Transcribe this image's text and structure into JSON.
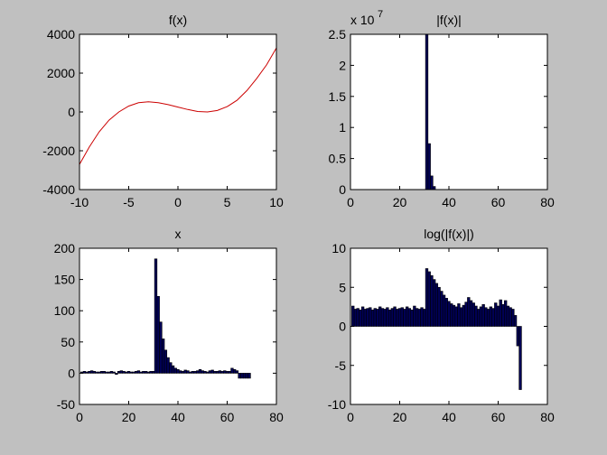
{
  "chart_data": [
    {
      "type": "line",
      "title": "f(x)",
      "xlim": [
        -10,
        10
      ],
      "ylim": [
        -4000,
        4000
      ],
      "xticks": [
        -10,
        -5,
        0,
        5,
        10
      ],
      "yticks": [
        -4000,
        -2000,
        0,
        2000,
        4000
      ],
      "tick_labels_x": [
        "-10",
        "-5",
        "0",
        "5",
        "10"
      ],
      "tick_labels_y": [
        "-4000",
        "-2000",
        "0",
        "2000",
        "4000"
      ],
      "series": [
        {
          "color": "#cc0000",
          "x": [
            -10,
            -9,
            -8,
            -7,
            -6,
            -5,
            -4,
            -3,
            -2,
            -1,
            0,
            1,
            2,
            3,
            4,
            5,
            6,
            7,
            8,
            9,
            10
          ],
          "values": [
            -2700,
            -1800,
            -1025,
            -425,
            0,
            300,
            475,
            525,
            475,
            375,
            250,
            125,
            25,
            0,
            75,
            275,
            600,
            1100,
            1725,
            2425,
            3300
          ]
        }
      ],
      "grid": false
    },
    {
      "type": "bar",
      "title": "|f(x)|",
      "exponent_label": "x 10",
      "exponent_power": "7",
      "xlim": [
        0,
        80
      ],
      "ylim": [
        0,
        2.5
      ],
      "xticks": [
        0,
        20,
        40,
        60,
        80
      ],
      "yticks": [
        0,
        0.5,
        1,
        1.5,
        2,
        2.5
      ],
      "tick_labels_x": [
        "0",
        "20",
        "40",
        "60",
        "80"
      ],
      "tick_labels_y": [
        "0",
        "0.5",
        "1",
        "1.5",
        "2",
        "2.5"
      ],
      "bar_color": "#000055",
      "x": [
        31,
        32,
        33,
        34
      ],
      "values": [
        2.5,
        0.74,
        0.22,
        0.05
      ],
      "grid": false
    },
    {
      "type": "bar",
      "title": "x",
      "xlim": [
        0,
        80
      ],
      "ylim": [
        -50,
        200
      ],
      "xticks": [
        0,
        20,
        40,
        60,
        80
      ],
      "yticks": [
        -50,
        0,
        50,
        100,
        150,
        200
      ],
      "tick_labels_x": [
        "0",
        "20",
        "40",
        "60",
        "80"
      ],
      "tick_labels_y": [
        "-50",
        "0",
        "50",
        "100",
        "150",
        "200"
      ],
      "bar_color": "#000055",
      "x": [
        1,
        2,
        3,
        4,
        5,
        6,
        7,
        8,
        9,
        10,
        11,
        12,
        13,
        14,
        15,
        16,
        17,
        18,
        19,
        20,
        21,
        22,
        23,
        24,
        25,
        26,
        27,
        28,
        29,
        30,
        31,
        32,
        33,
        34,
        35,
        36,
        37,
        38,
        39,
        40,
        41,
        42,
        43,
        44,
        45,
        46,
        47,
        48,
        49,
        50,
        51,
        52,
        53,
        54,
        55,
        56,
        57,
        58,
        59,
        60,
        61,
        62,
        63,
        64,
        65,
        66,
        67,
        68,
        69
      ],
      "values": [
        2,
        3,
        2,
        3,
        4,
        3,
        2,
        2,
        3,
        3,
        2,
        2,
        3,
        2,
        -2,
        3,
        4,
        3,
        2,
        3,
        2,
        2,
        3,
        4,
        2,
        3,
        3,
        2,
        3,
        3,
        183,
        123,
        82,
        55,
        37,
        25,
        17,
        12,
        8,
        6,
        4,
        3,
        5,
        4,
        2,
        3,
        3,
        4,
        6,
        4,
        3,
        2,
        4,
        5,
        3,
        3,
        4,
        3,
        4,
        3,
        3,
        8,
        6,
        4,
        -8,
        -8,
        -8,
        -8,
        -8
      ],
      "grid": false
    },
    {
      "type": "bar",
      "title": "log(|f(x)|)",
      "xlim": [
        0,
        80
      ],
      "ylim": [
        -10,
        10
      ],
      "xticks": [
        0,
        20,
        40,
        60,
        80
      ],
      "yticks": [
        -10,
        -5,
        0,
        5,
        10
      ],
      "tick_labels_x": [
        "0",
        "20",
        "40",
        "60",
        "80"
      ],
      "tick_labels_y": [
        "-10",
        "-5",
        "0",
        "5",
        "10"
      ],
      "bar_color": "#000055",
      "x": [
        1,
        2,
        3,
        4,
        5,
        6,
        7,
        8,
        9,
        10,
        11,
        12,
        13,
        14,
        15,
        16,
        17,
        18,
        19,
        20,
        21,
        22,
        23,
        24,
        25,
        26,
        27,
        28,
        29,
        30,
        31,
        32,
        33,
        34,
        35,
        36,
        37,
        38,
        39,
        40,
        41,
        42,
        43,
        44,
        45,
        46,
        47,
        48,
        49,
        50,
        51,
        52,
        53,
        54,
        55,
        56,
        57,
        58,
        59,
        60,
        61,
        62,
        63,
        64,
        65,
        66,
        67,
        68,
        69
      ],
      "values": [
        2.6,
        2.2,
        2.3,
        2.1,
        2.5,
        2.2,
        2.3,
        2.4,
        2.1,
        2.3,
        2.2,
        2.5,
        2.3,
        2.2,
        2.4,
        2.1,
        2.3,
        2.5,
        2.2,
        2.3,
        2.4,
        2.2,
        2.5,
        2.3,
        2.1,
        2.6,
        2.3,
        2.2,
        2.4,
        2.2,
        7.4,
        7.0,
        6.5,
        6.0,
        5.5,
        5.0,
        4.5,
        4.0,
        3.6,
        3.2,
        2.9,
        2.7,
        2.5,
        2.9,
        2.4,
        2.7,
        3.1,
        3.7,
        3.3,
        3.0,
        2.6,
        2.2,
        2.5,
        2.8,
        2.4,
        2.2,
        2.5,
        2.3,
        3.0,
        2.6,
        3.4,
        2.8,
        3.3,
        2.6,
        2.4,
        2.2,
        1.4,
        -2.5,
        -8.1
      ],
      "grid": false
    }
  ]
}
